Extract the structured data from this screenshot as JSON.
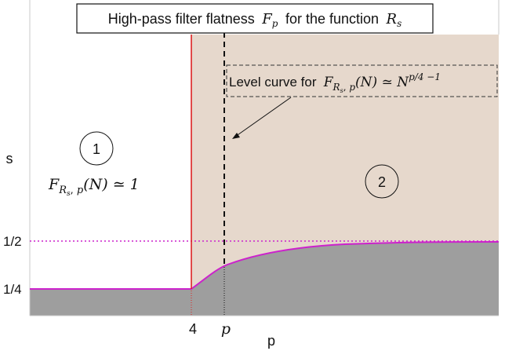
{
  "title": {
    "prefix": "High-pass filter flatness",
    "symbol": "F",
    "symbol_sub": "p",
    "middle": "for the function",
    "func": "R",
    "func_sub": "s"
  },
  "axes": {
    "y_label": "s",
    "x_label": "p",
    "y_ticks": [
      "1/2",
      "1/4"
    ],
    "x_tick_4": "4",
    "x_tick_p": "p"
  },
  "regions": {
    "region1_id": "1",
    "region1_formula": {
      "F": "F",
      "R": "R",
      "Rsub": "s",
      "psub": "p",
      "arg": "(N) ≃ 1"
    },
    "region2_id": "2"
  },
  "level_curve": {
    "prefix": "Level curve for",
    "F": "F",
    "R": "R",
    "Rsub": "s",
    "psub": "p",
    "arg": "(N) ≃ N",
    "exponent": "p/4 −1"
  },
  "colors": {
    "region2_fill": "#e6d8cc",
    "lower_fill": "#9e9e9e",
    "magenta": "#cc22cc",
    "red": "#dd2222"
  }
}
